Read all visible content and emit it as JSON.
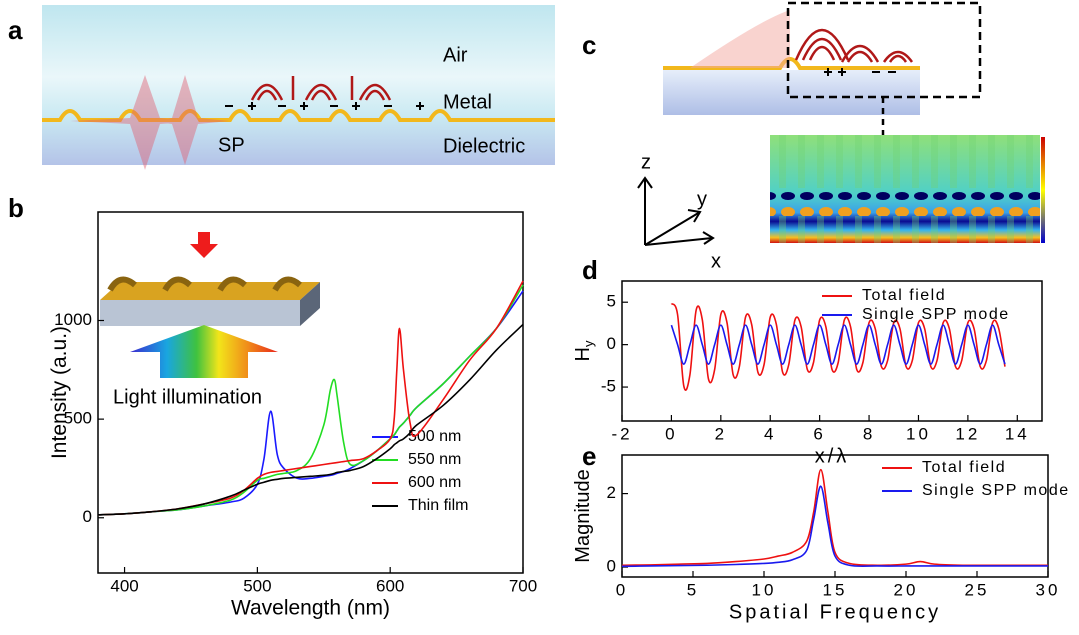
{
  "panel_labels": {
    "a": "a",
    "b": "b",
    "c": "c",
    "d": "d",
    "e": "e"
  },
  "diagram_a": {
    "air": "Air",
    "metal": "Metal",
    "dielectric": "Dielectric",
    "sp": "SP"
  },
  "inset_b": {
    "text": "Light illumination"
  },
  "diagram_c": {
    "z": "z",
    "y": "y",
    "x": "x"
  },
  "chart_data": [
    {
      "type": "line",
      "xlabel": "Wavelength (nm)",
      "ylabel": "Intensity (a.u.)",
      "xlim": [
        380,
        700
      ],
      "ylim": [
        -280,
        1550
      ],
      "xticks": [
        400,
        500,
        600,
        700
      ],
      "yticks": [
        0,
        500,
        1000
      ],
      "legend": "lower right",
      "x": [
        380,
        400,
        420,
        440,
        460,
        480,
        490,
        500,
        505,
        510,
        515,
        520,
        530,
        540,
        550,
        555,
        558,
        560,
        565,
        570,
        580,
        590,
        600,
        603,
        605,
        607,
        610,
        615,
        620,
        640,
        660,
        680,
        700
      ],
      "series": [
        {
          "name": "500 nm",
          "color": "#1a1aff",
          "values": [
            15,
            20,
            30,
            40,
            60,
            80,
            100,
            170,
            300,
            540,
            320,
            250,
            200,
            200,
            210,
            215,
            220,
            225,
            235,
            250,
            290,
            340,
            400,
            420,
            440,
            460,
            480,
            520,
            560,
            680,
            820,
            960,
            1150
          ]
        },
        {
          "name": "550 nm",
          "color": "#22dd22",
          "values": [
            15,
            20,
            30,
            40,
            60,
            90,
            130,
            190,
            200,
            210,
            220,
            225,
            240,
            300,
            470,
            650,
            700,
            620,
            380,
            270,
            290,
            340,
            400,
            420,
            440,
            460,
            480,
            520,
            560,
            680,
            820,
            960,
            1180
          ]
        },
        {
          "name": "600 nm",
          "color": "#ee1111",
          "values": [
            15,
            20,
            30,
            45,
            70,
            100,
            140,
            200,
            220,
            230,
            235,
            240,
            250,
            260,
            270,
            275,
            278,
            280,
            285,
            290,
            300,
            340,
            400,
            500,
            750,
            960,
            750,
            480,
            420,
            600,
            800,
            960,
            1200
          ]
        },
        {
          "name": "Thin film",
          "color": "#000000",
          "values": [
            15,
            20,
            30,
            45,
            70,
            110,
            140,
            170,
            180,
            190,
            195,
            200,
            205,
            210,
            215,
            220,
            225,
            230,
            235,
            240,
            260,
            300,
            350,
            370,
            380,
            390,
            400,
            430,
            470,
            570,
            700,
            850,
            980
          ]
        }
      ]
    },
    {
      "type": "line",
      "xlabel": "x/λ",
      "ylabel": "H",
      "ylabel_sub": "y",
      "xlim": [
        -2,
        15
      ],
      "ylim": [
        -9,
        7.5
      ],
      "xticks": [
        -2,
        0,
        2,
        4,
        6,
        8,
        10,
        12,
        14
      ],
      "yticks": [
        -5,
        0,
        5
      ],
      "legend": "upper right",
      "x": [
        0,
        0.25,
        0.5,
        0.75,
        1,
        1.25,
        1.5,
        1.75,
        2,
        2.25,
        2.5,
        2.75,
        3,
        3.25,
        3.5,
        3.75,
        4,
        4.25,
        4.5,
        4.75,
        5,
        5.25,
        5.5,
        5.75,
        6,
        6.25,
        6.5,
        6.75,
        7,
        7.25,
        7.5,
        7.75,
        8,
        8.25,
        8.5,
        8.75,
        9,
        9.25,
        9.5,
        9.75,
        10,
        10.25,
        10.5,
        10.75,
        11,
        11.25,
        11.5,
        11.75,
        12,
        12.25,
        12.5,
        12.75,
        13,
        13.25,
        13.5
      ],
      "series": [
        {
          "name": "Total field",
          "color": "#ee1111",
          "values": [
            4.85,
            3.53,
            -4.85,
            -3.53,
            4.05,
            2.94,
            -4.05,
            -2.94,
            3.56,
            2.59,
            -3.56,
            -2.59,
            3.24,
            2.35,
            -3.24,
            -2.35,
            3.24,
            2.35,
            -3.24,
            -2.35,
            2.91,
            2.12,
            -2.91,
            -2.12,
            2.91,
            2.12,
            -2.91,
            -2.12,
            2.91,
            2.12,
            -2.91,
            -2.12,
            2.59,
            1.88,
            -2.59,
            -1.88,
            2.59,
            1.88,
            -2.59,
            -1.88,
            2.59,
            1.88,
            -2.59,
            -1.88,
            2.59,
            1.88,
            -2.59,
            -1.88,
            2.59,
            1.88,
            -2.59,
            -1.88,
            2.59,
            1.88,
            -2.59
          ]
        },
        {
          "name": "Single SPP mode",
          "color": "#1a1aee",
          "values": [
            2.3,
            0,
            -2.3,
            0,
            2.3,
            0,
            -2.3,
            0,
            2.3,
            0,
            -2.3,
            0,
            2.3,
            0,
            -2.3,
            0,
            2.3,
            0,
            -2.3,
            0,
            2.3,
            0,
            -2.3,
            0,
            2.3,
            0,
            -2.3,
            0,
            2.3,
            0,
            -2.3,
            0,
            2.3,
            0,
            -2.3,
            0,
            2.3,
            0,
            -2.3,
            0,
            2.3,
            0,
            -2.3,
            0,
            2.3,
            0,
            -2.3,
            0,
            2.3,
            0,
            -2.3,
            0,
            2.3,
            0,
            -2.3
          ]
        }
      ]
    },
    {
      "type": "line",
      "xlabel": "Spatial Frequency",
      "ylabel": "Magnitude",
      "xlim": [
        0,
        30
      ],
      "ylim": [
        -0.27,
        3.05
      ],
      "xticks": [
        0,
        5,
        10,
        15,
        20,
        25,
        30
      ],
      "yticks": [
        0,
        2
      ],
      "legend": "upper right",
      "x": [
        0,
        2,
        4,
        6,
        8,
        10,
        11,
        12,
        13,
        13.5,
        14,
        14.5,
        15,
        16,
        18,
        20,
        21,
        22,
        24,
        26,
        28,
        30
      ],
      "series": [
        {
          "name": "Total field",
          "color": "#ee1111",
          "values": [
            0.05,
            0.06,
            0.08,
            0.1,
            0.15,
            0.22,
            0.3,
            0.4,
            0.7,
            1.5,
            2.65,
            1.5,
            0.4,
            0.1,
            0.05,
            0.08,
            0.15,
            0.08,
            0.05,
            0.05,
            0.05,
            0.05
          ]
        },
        {
          "name": "Single SPP mode",
          "color": "#1a1aee",
          "values": [
            0.02,
            0.03,
            0.04,
            0.05,
            0.07,
            0.1,
            0.13,
            0.2,
            0.45,
            1.3,
            2.2,
            1.2,
            0.3,
            0.05,
            0.03,
            0.03,
            0.03,
            0.03,
            0.03,
            0.03,
            0.03,
            0.03
          ]
        }
      ]
    }
  ]
}
